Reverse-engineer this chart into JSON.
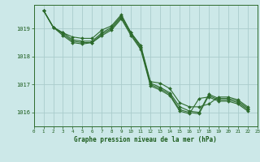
{
  "title": "Graphe pression niveau de la mer (hPa)",
  "background_color": "#cce8e8",
  "grid_color": "#aacccc",
  "line_color": "#2d6b2d",
  "text_color": "#1a5a1a",
  "xlim": [
    0,
    23
  ],
  "ylim": [
    1015.5,
    1019.85
  ],
  "yticks": [
    1016,
    1017,
    1018,
    1019
  ],
  "xticks": [
    0,
    1,
    2,
    3,
    4,
    5,
    6,
    7,
    8,
    9,
    10,
    11,
    12,
    13,
    14,
    15,
    16,
    17,
    18,
    19,
    20,
    21,
    22,
    23
  ],
  "series": [
    [
      1019.65,
      1019.05,
      1018.85,
      1018.7,
      1018.65,
      1018.65,
      1018.95,
      1019.1,
      1019.5,
      1018.85,
      1018.4,
      1017.1,
      1017.05,
      1016.85,
      1016.35,
      1016.2,
      1016.2,
      1016.3,
      1016.55,
      1016.55,
      1016.45,
      1016.2
    ],
    [
      1019.65,
      1019.05,
      1018.85,
      1018.6,
      1018.55,
      1018.55,
      1018.85,
      1019.05,
      1019.45,
      1018.85,
      1018.35,
      1017.05,
      1016.9,
      1016.7,
      1016.2,
      1016.05,
      1016.0,
      1016.65,
      1016.5,
      1016.5,
      1016.4,
      1016.15
    ],
    [
      1019.65,
      1019.05,
      1018.8,
      1018.55,
      1018.5,
      1018.5,
      1018.8,
      1019.0,
      1019.4,
      1018.8,
      1018.3,
      1017.0,
      1016.85,
      1016.65,
      1016.1,
      1016.0,
      1015.95,
      1016.6,
      1016.45,
      1016.45,
      1016.35,
      1016.1
    ],
    [
      1019.65,
      1019.05,
      1018.75,
      1018.5,
      1018.45,
      1018.5,
      1018.75,
      1018.95,
      1019.35,
      1018.75,
      1018.25,
      1016.95,
      1016.8,
      1016.6,
      1016.05,
      1015.95,
      1016.5,
      1016.55,
      1016.4,
      1016.4,
      1016.3,
      1016.05
    ]
  ],
  "x_start": 1,
  "marker": "D",
  "markersize": 2.0,
  "linewidth": 0.8
}
